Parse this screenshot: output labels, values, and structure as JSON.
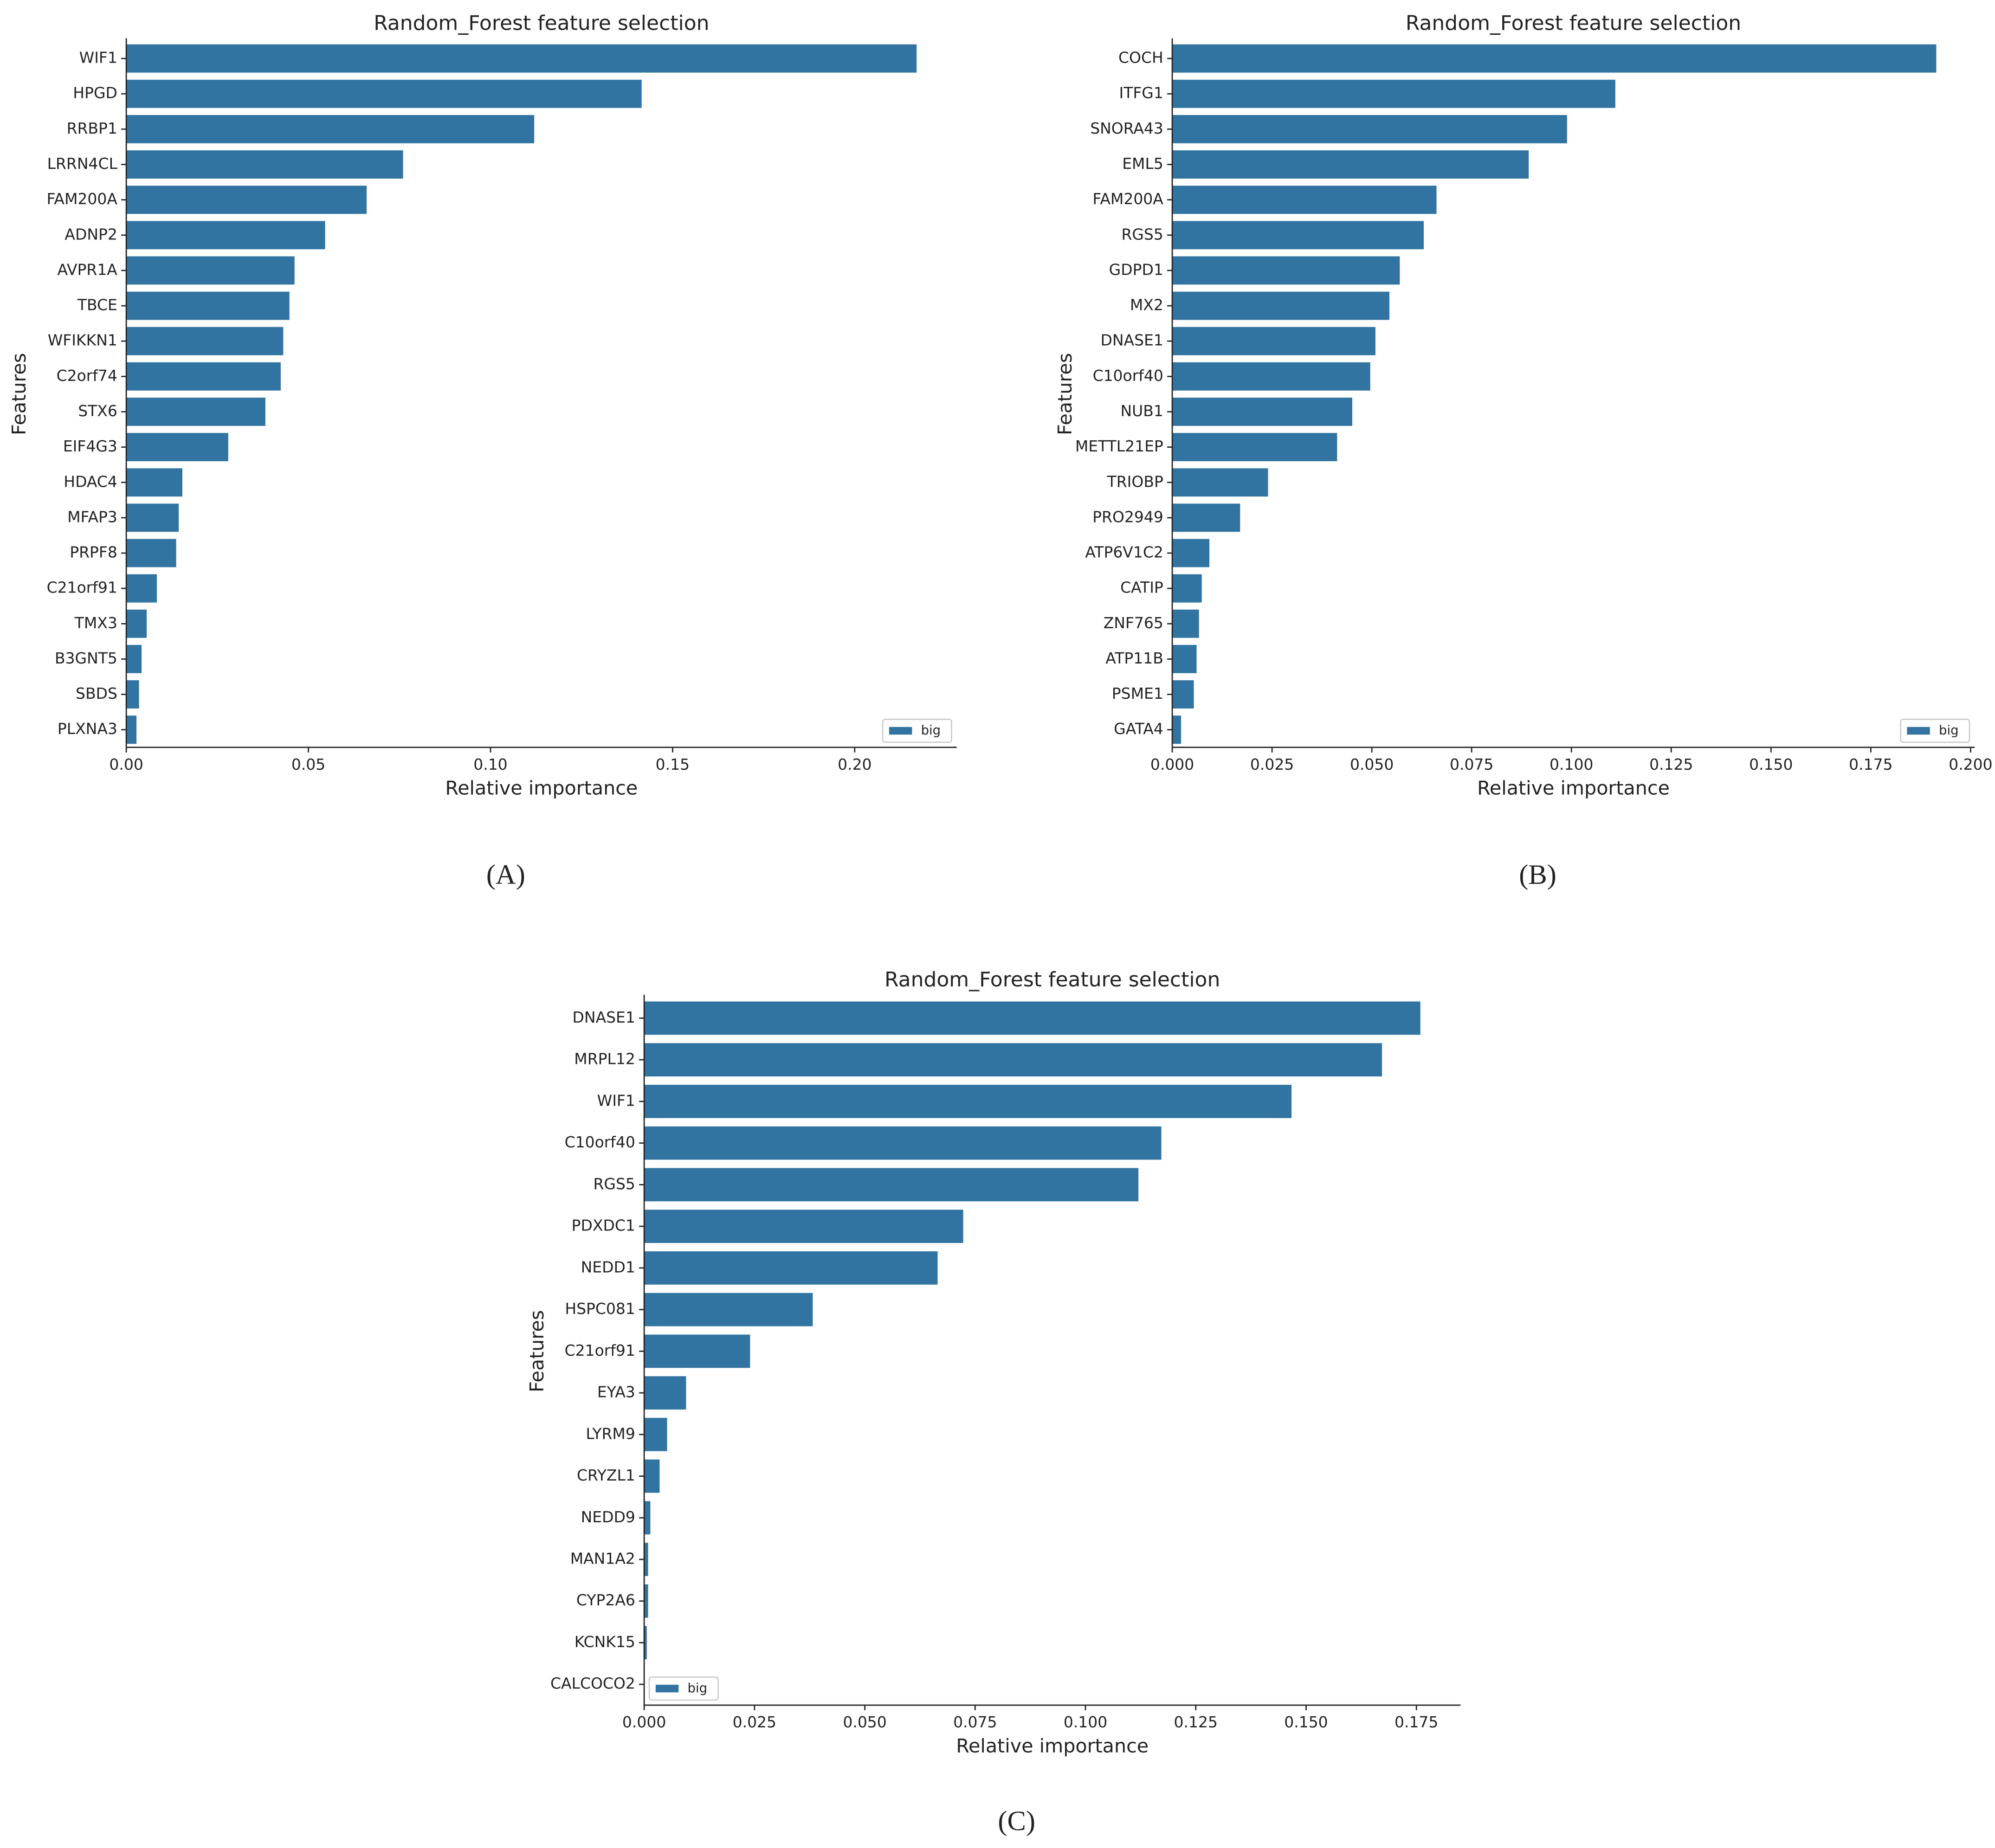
{
  "chart_data": [
    {
      "type": "barh",
      "title": "Random_Forest feature selection",
      "xlabel": "Relative importance",
      "ylabel": "Features",
      "label": "(A)",
      "categories": [
        "WIF1",
        "HPGD",
        "RRBP1",
        "LRRN4CL",
        "FAM200A",
        "ADNP2",
        "AVPR1A",
        "TBCE",
        "WFIKKN1",
        "C2orf74",
        "STX6",
        "EIF4G3",
        "HDAC4",
        "MFAP3",
        "PRPF8",
        "C21orf91",
        "TMX3",
        "B3GNT5",
        "SBDS",
        "PLXNA3"
      ],
      "series": [
        {
          "name": "big",
          "color": "#3274a1",
          "values": [
            0.217,
            0.1415,
            0.112,
            0.076,
            0.066,
            0.0546,
            0.0462,
            0.0448,
            0.0431,
            0.0424,
            0.0382,
            0.028,
            0.0154,
            0.0144,
            0.0137,
            0.0084,
            0.0056,
            0.0042,
            0.0035,
            0.0028
          ]
        }
      ],
      "xlim": [
        0,
        0.228
      ],
      "xticks": [
        {
          "value": 0,
          "label": "0.00"
        },
        {
          "value": 0.05,
          "label": "0.05"
        },
        {
          "value": 0.1,
          "label": "0.10"
        },
        {
          "value": 0.15,
          "label": "0.15"
        },
        {
          "value": 0.2,
          "label": "0.20"
        }
      ],
      "legend": "lower right"
    },
    {
      "type": "barh",
      "title": "Random_Forest feature selection",
      "xlabel": "Relative importance",
      "ylabel": "Features",
      "label": "(B)",
      "categories": [
        "COCH",
        "ITFG1",
        "SNORA43",
        "EML5",
        "FAM200A",
        "RGS5",
        "GDPD1",
        "MX2",
        "DNASE1",
        "C10orf40",
        "NUB1",
        "METTL21EP",
        "TRIOBP",
        "PRO2949",
        "ATP6V1C2",
        "CATIP",
        "ZNF765",
        "ATP11B",
        "PSME1",
        "GATA4"
      ],
      "series": [
        {
          "name": "big",
          "color": "#3274a1",
          "values": [
            0.1914,
            0.111,
            0.0989,
            0.0893,
            0.0662,
            0.063,
            0.057,
            0.0544,
            0.0509,
            0.0496,
            0.0451,
            0.0413,
            0.024,
            0.017,
            0.0093,
            0.0074,
            0.0067,
            0.0061,
            0.0054,
            0.0022
          ]
        }
      ],
      "xlim": [
        0,
        0.201
      ],
      "xticks": [
        {
          "value": 0,
          "label": "0.000"
        },
        {
          "value": 0.025,
          "label": "0.025"
        },
        {
          "value": 0.05,
          "label": "0.050"
        },
        {
          "value": 0.075,
          "label": "0.075"
        },
        {
          "value": 0.1,
          "label": "0.100"
        },
        {
          "value": 0.125,
          "label": "0.125"
        },
        {
          "value": 0.15,
          "label": "0.150"
        },
        {
          "value": 0.175,
          "label": "0.175"
        },
        {
          "value": 0.2,
          "label": "0.200"
        }
      ],
      "legend": "lower right"
    },
    {
      "type": "barh",
      "title": "Random_Forest feature selection",
      "xlabel": "Relative importance",
      "ylabel": "Features",
      "label": "(C)",
      "categories": [
        "DNASE1",
        "MRPL12",
        "WIF1",
        "C10orf40",
        "RGS5",
        "PDXDC1",
        "NEDD1",
        "HSPC081",
        "C21orf91",
        "EYA3",
        "LYRM9",
        "CRYZL1",
        "NEDD9",
        "MAN1A2",
        "CYP2A6",
        "KCNK15",
        "CALCOCO2"
      ],
      "series": [
        {
          "name": "big",
          "color": "#3274a1",
          "values": [
            0.1759,
            0.1672,
            0.1467,
            0.1172,
            0.112,
            0.0723,
            0.0665,
            0.0382,
            0.024,
            0.0095,
            0.0052,
            0.0035,
            0.0014,
            0.0009,
            0.0009,
            0.0006,
            0.0001
          ]
        }
      ],
      "xlim": [
        0,
        0.185
      ],
      "xticks": [
        {
          "value": 0,
          "label": "0.000"
        },
        {
          "value": 0.025,
          "label": "0.025"
        },
        {
          "value": 0.05,
          "label": "0.050"
        },
        {
          "value": 0.075,
          "label": "0.075"
        },
        {
          "value": 0.1,
          "label": "0.100"
        },
        {
          "value": 0.125,
          "label": "0.125"
        },
        {
          "value": 0.15,
          "label": "0.150"
        },
        {
          "value": 0.175,
          "label": "0.175"
        }
      ],
      "legend": "lower left"
    }
  ]
}
